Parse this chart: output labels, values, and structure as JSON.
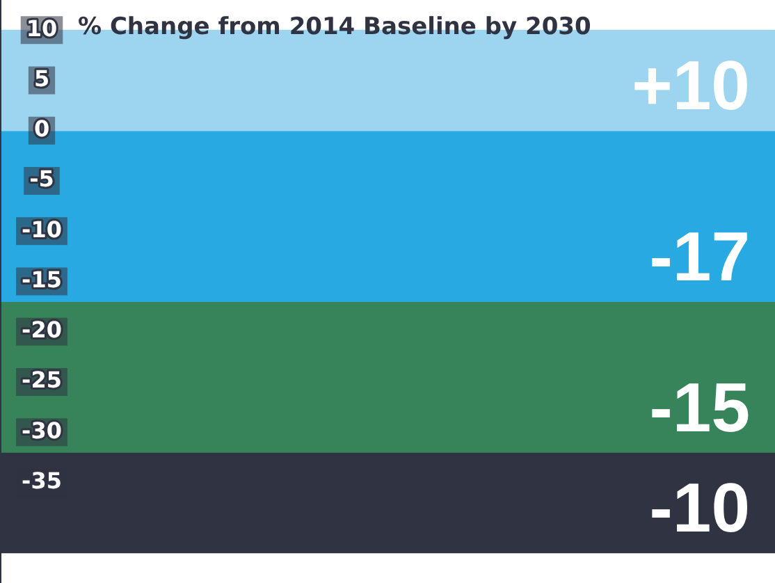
{
  "chart_data": {
    "type": "bar",
    "stacked": true,
    "title": "% Change from 2014 Baseline by 2030",
    "categories": [
      null
    ],
    "series": [
      {
        "color": "#9dd5f0",
        "values": [
          10
        ],
        "value_labels": [
          "+10"
        ]
      },
      {
        "color": "#29a9e1",
        "values": [
          -17
        ],
        "value_labels": [
          "-17"
        ]
      },
      {
        "color": "#37835a",
        "values": [
          -15
        ],
        "value_labels": [
          "-15"
        ]
      },
      {
        "color": "#2f3342",
        "values": [
          -10
        ],
        "value_labels": [
          "-10"
        ]
      }
    ],
    "ylim": [
      -45,
      13
    ],
    "yticks": [
      10,
      5,
      0,
      -5,
      -10,
      -15,
      -20,
      -25,
      -30,
      -35
    ],
    "legend": false,
    "tick_labels": "y"
  }
}
